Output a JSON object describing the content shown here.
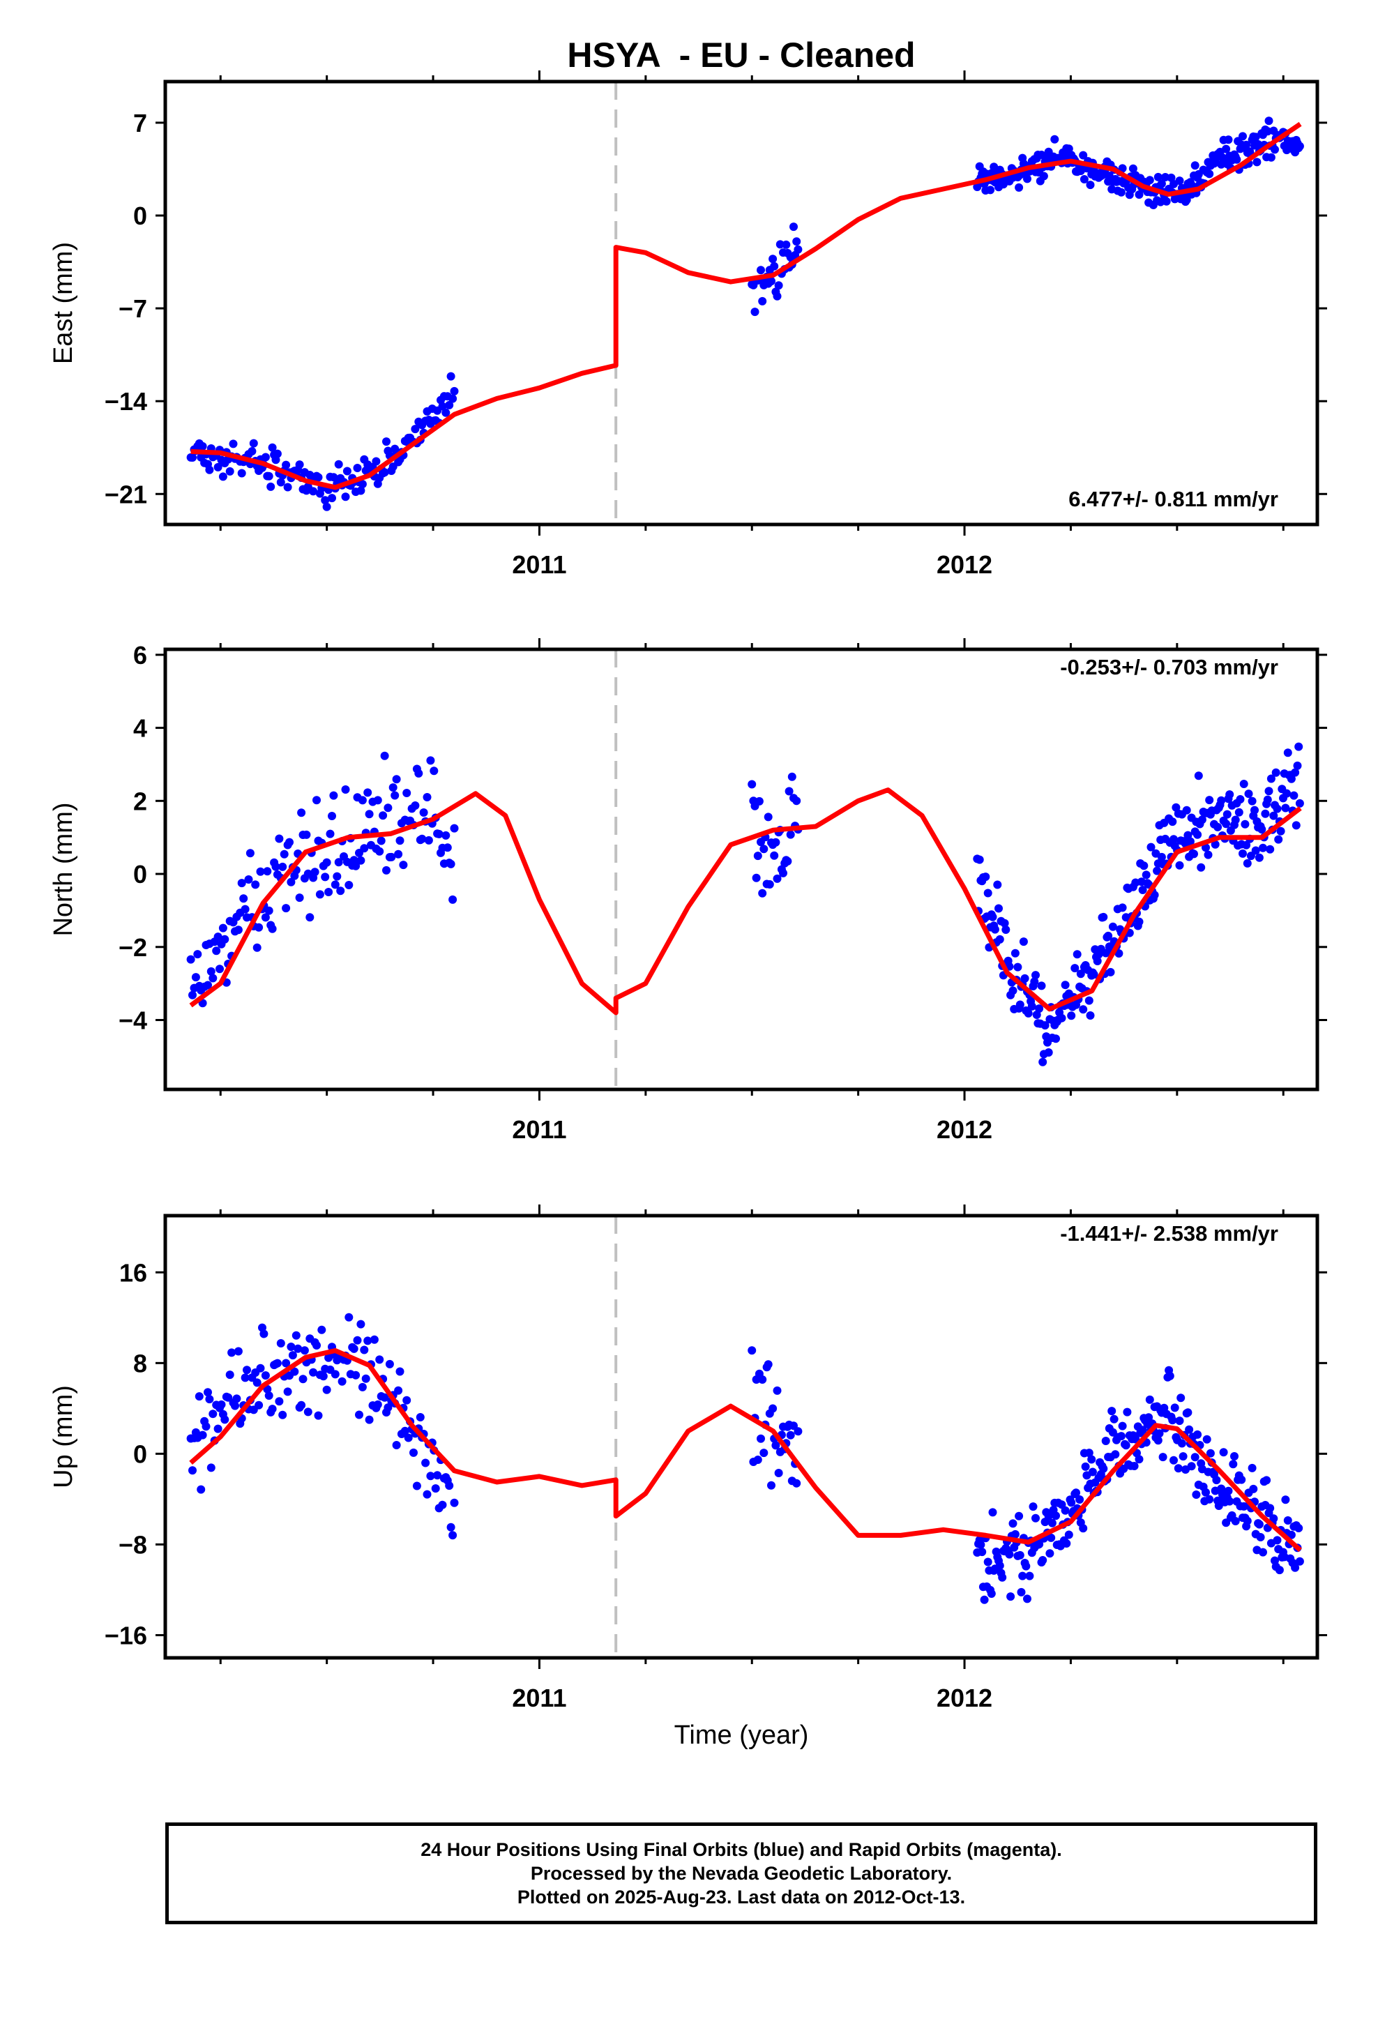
{
  "title": "HSYA  - EU - Cleaned",
  "colors": {
    "final_orbits": "#0000ff",
    "model": "#ff0000",
    "break_line": "#c0c0c0",
    "frame": "#000000"
  },
  "xlabel": "Time (year)",
  "x_tick_labels": [
    "2011",
    "2012"
  ],
  "footer": {
    "line1": "24 Hour Positions Using Final Orbits (blue) and Rapid Orbits (magenta).",
    "line2": "Processed by the Nevada Geodetic Laboratory.",
    "line3": "Plotted on 2025-Aug-23. Last data on 2012-Oct-13."
  },
  "chart_data": [
    {
      "type": "scatter",
      "ylabel": "East (mm)",
      "rate_label": "6.477+/- 0.811 mm/yr",
      "rate_position": "bottom-right",
      "xlim": [
        2010.12,
        2012.83
      ],
      "ylim": [
        -23.3,
        10.1
      ],
      "y_ticks": [
        7,
        0,
        -7,
        -14,
        -21
      ],
      "y_tick_labels": [
        "7",
        "0",
        "−7",
        "−14",
        "−21"
      ],
      "x_ticks": [
        2011,
        2012
      ],
      "x_minor_ticks": [
        2010.25,
        2010.5,
        2010.75,
        2011.25,
        2011.5,
        2011.75,
        2012.25,
        2012.5,
        2012.75
      ],
      "break_epoch": 2011.18,
      "grid": false,
      "data_segments": [
        {
          "start": 2010.18,
          "end": 2010.8,
          "anchors": [
            [
              2010.18,
              -17.8
            ],
            [
              2010.35,
              -18.7
            ],
            [
              2010.5,
              -20.5
            ],
            [
              2010.6,
              -19.5
            ],
            [
              2010.7,
              -16.8
            ],
            [
              2010.8,
              -13.5
            ]
          ],
          "noise": 1.1,
          "step": 0.004
        },
        {
          "start": 2011.5,
          "end": 2011.61,
          "anchors": [
            [
              2011.5,
              -5.3
            ],
            [
              2011.55,
              -4.6
            ],
            [
              2011.61,
              -2.3
            ]
          ],
          "noise": 1.6,
          "step": 0.0035
        },
        {
          "start": 2012.03,
          "end": 2012.79,
          "anchors": [
            [
              2012.03,
              2.8
            ],
            [
              2012.12,
              3.3
            ],
            [
              2012.22,
              4.4
            ],
            [
              2012.3,
              3.3
            ],
            [
              2012.4,
              2.3
            ],
            [
              2012.5,
              1.6
            ],
            [
              2012.6,
              4.2
            ],
            [
              2012.68,
              5.4
            ],
            [
              2012.79,
              5.8
            ]
          ],
          "noise": 1.0,
          "step": 0.0028
        }
      ],
      "model": [
        [
          2010.18,
          -17.8
        ],
        [
          2010.25,
          -17.9
        ],
        [
          2010.35,
          -18.7
        ],
        [
          2010.45,
          -20.0
        ],
        [
          2010.52,
          -20.5
        ],
        [
          2010.6,
          -19.6
        ],
        [
          2010.7,
          -17.3
        ],
        [
          2010.8,
          -15.0
        ],
        [
          2010.9,
          -13.8
        ],
        [
          2011.0,
          -13.0
        ],
        [
          2011.1,
          -11.9
        ],
        [
          2011.18,
          -11.3
        ],
        [
          2011.18,
          -2.4
        ],
        [
          2011.25,
          -2.8
        ],
        [
          2011.35,
          -4.3
        ],
        [
          2011.45,
          -5.0
        ],
        [
          2011.55,
          -4.5
        ],
        [
          2011.65,
          -2.5
        ],
        [
          2011.75,
          -0.3
        ],
        [
          2011.85,
          1.3
        ],
        [
          2011.95,
          2.0
        ],
        [
          2012.05,
          2.7
        ],
        [
          2012.15,
          3.6
        ],
        [
          2012.25,
          4.1
        ],
        [
          2012.35,
          3.5
        ],
        [
          2012.42,
          2.2
        ],
        [
          2012.48,
          1.6
        ],
        [
          2012.55,
          2.0
        ],
        [
          2012.65,
          3.8
        ],
        [
          2012.73,
          5.6
        ],
        [
          2012.79,
          6.9
        ]
      ]
    },
    {
      "type": "scatter",
      "ylabel": "North (mm)",
      "rate_label": "-0.253+/- 0.703 mm/yr",
      "rate_position": "top-right",
      "xlim": [
        2010.12,
        2012.83
      ],
      "ylim": [
        -5.9,
        6.15
      ],
      "y_ticks": [
        6,
        4,
        2,
        0,
        -2,
        -4
      ],
      "y_tick_labels": [
        "6",
        "4",
        "2",
        "0",
        "−2",
        "−4"
      ],
      "x_ticks": [
        2011,
        2012
      ],
      "x_minor_ticks": [
        2010.25,
        2010.5,
        2010.75,
        2011.25,
        2011.5,
        2011.75,
        2012.25,
        2012.5,
        2012.75
      ],
      "break_epoch": 2011.18,
      "grid": false,
      "data_segments": [
        {
          "start": 2010.18,
          "end": 2010.8,
          "anchors": [
            [
              2010.18,
              -3.2
            ],
            [
              2010.3,
              -1.2
            ],
            [
              2010.45,
              0.5
            ],
            [
              2010.6,
              1.0
            ],
            [
              2010.72,
              1.9
            ],
            [
              2010.8,
              0.2
            ]
          ],
          "noise": 1.2,
          "step": 0.004
        },
        {
          "start": 2011.5,
          "end": 2011.61,
          "anchors": [
            [
              2011.5,
              1.2
            ],
            [
              2011.55,
              0.6
            ],
            [
              2011.61,
              1.9
            ]
          ],
          "noise": 1.4,
          "step": 0.0035
        },
        {
          "start": 2012.03,
          "end": 2012.79,
          "anchors": [
            [
              2012.03,
              0.0
            ],
            [
              2012.1,
              -2.4
            ],
            [
              2012.2,
              -4.3
            ],
            [
              2012.3,
              -2.6
            ],
            [
              2012.4,
              -0.8
            ],
            [
              2012.5,
              1.2
            ],
            [
              2012.6,
              1.2
            ],
            [
              2012.7,
              1.3
            ],
            [
              2012.79,
              2.6
            ]
          ],
          "noise": 1.0,
          "step": 0.0028
        }
      ],
      "model": [
        [
          2010.18,
          -3.6
        ],
        [
          2010.25,
          -3.0
        ],
        [
          2010.35,
          -0.8
        ],
        [
          2010.45,
          0.6
        ],
        [
          2010.55,
          1.0
        ],
        [
          2010.65,
          1.1
        ],
        [
          2010.75,
          1.5
        ],
        [
          2010.85,
          2.2
        ],
        [
          2010.92,
          1.6
        ],
        [
          2011.0,
          -0.7
        ],
        [
          2011.1,
          -3.0
        ],
        [
          2011.18,
          -3.8
        ],
        [
          2011.18,
          -3.4
        ],
        [
          2011.25,
          -3.0
        ],
        [
          2011.35,
          -0.9
        ],
        [
          2011.45,
          0.8
        ],
        [
          2011.55,
          1.2
        ],
        [
          2011.65,
          1.3
        ],
        [
          2011.75,
          2.0
        ],
        [
          2011.82,
          2.3
        ],
        [
          2011.9,
          1.6
        ],
        [
          2012.0,
          -0.4
        ],
        [
          2012.1,
          -2.7
        ],
        [
          2012.2,
          -3.7
        ],
        [
          2012.3,
          -3.2
        ],
        [
          2012.4,
          -1.1
        ],
        [
          2012.5,
          0.6
        ],
        [
          2012.6,
          1.0
        ],
        [
          2012.7,
          1.0
        ],
        [
          2012.79,
          1.8
        ]
      ]
    },
    {
      "type": "scatter",
      "ylabel": "Up (mm)",
      "rate_label": "-1.441+/- 2.538 mm/yr",
      "rate_position": "top-right",
      "xlim": [
        2010.12,
        2012.83
      ],
      "ylim": [
        -18.0,
        21.0
      ],
      "y_ticks": [
        16,
        8,
        0,
        -8,
        -16
      ],
      "y_tick_labels": [
        "16",
        "8",
        "0",
        "−8",
        "−16"
      ],
      "x_ticks": [
        2011,
        2012
      ],
      "x_minor_ticks": [
        2010.25,
        2010.5,
        2010.75,
        2011.25,
        2011.5,
        2011.75,
        2012.25,
        2012.5,
        2012.75
      ],
      "break_epoch": 2011.18,
      "grid": false,
      "data_segments": [
        {
          "start": 2010.18,
          "end": 2010.8,
          "anchors": [
            [
              2010.18,
              1.0
            ],
            [
              2010.3,
              6.0
            ],
            [
              2010.45,
              8.0
            ],
            [
              2010.55,
              9.0
            ],
            [
              2010.65,
              5.0
            ],
            [
              2010.8,
              -5.0
            ]
          ],
          "noise": 3.5,
          "step": 0.004
        },
        {
          "start": 2011.5,
          "end": 2011.61,
          "anchors": [
            [
              2011.5,
              6.0
            ],
            [
              2011.55,
              2.0
            ],
            [
              2011.61,
              0.0
            ]
          ],
          "noise": 5.0,
          "step": 0.0035
        },
        {
          "start": 2012.03,
          "end": 2012.79,
          "anchors": [
            [
              2012.03,
              -9.0
            ],
            [
              2012.15,
              -8.5
            ],
            [
              2012.25,
              -5.0
            ],
            [
              2012.35,
              0.0
            ],
            [
              2012.47,
              4.0
            ],
            [
              2012.6,
              -3.0
            ],
            [
              2012.79,
              -8.0
            ]
          ],
          "noise": 3.2,
          "step": 0.0028
        }
      ],
      "model": [
        [
          2010.18,
          -0.8
        ],
        [
          2010.25,
          1.5
        ],
        [
          2010.35,
          6.0
        ],
        [
          2010.45,
          8.5
        ],
        [
          2010.52,
          9.1
        ],
        [
          2010.6,
          7.8
        ],
        [
          2010.7,
          2.5
        ],
        [
          2010.8,
          -1.5
        ],
        [
          2010.9,
          -2.5
        ],
        [
          2011.0,
          -2.0
        ],
        [
          2011.1,
          -2.8
        ],
        [
          2011.18,
          -2.3
        ],
        [
          2011.18,
          -5.5
        ],
        [
          2011.25,
          -3.5
        ],
        [
          2011.35,
          2.0
        ],
        [
          2011.45,
          4.2
        ],
        [
          2011.55,
          2.0
        ],
        [
          2011.65,
          -3.0
        ],
        [
          2011.75,
          -7.2
        ],
        [
          2011.85,
          -7.2
        ],
        [
          2011.95,
          -6.7
        ],
        [
          2012.05,
          -7.2
        ],
        [
          2012.15,
          -7.8
        ],
        [
          2012.25,
          -6.0
        ],
        [
          2012.35,
          -1.5
        ],
        [
          2012.45,
          2.5
        ],
        [
          2012.5,
          2.2
        ],
        [
          2012.6,
          -1.5
        ],
        [
          2012.7,
          -5.5
        ],
        [
          2012.79,
          -8.5
        ]
      ]
    }
  ]
}
